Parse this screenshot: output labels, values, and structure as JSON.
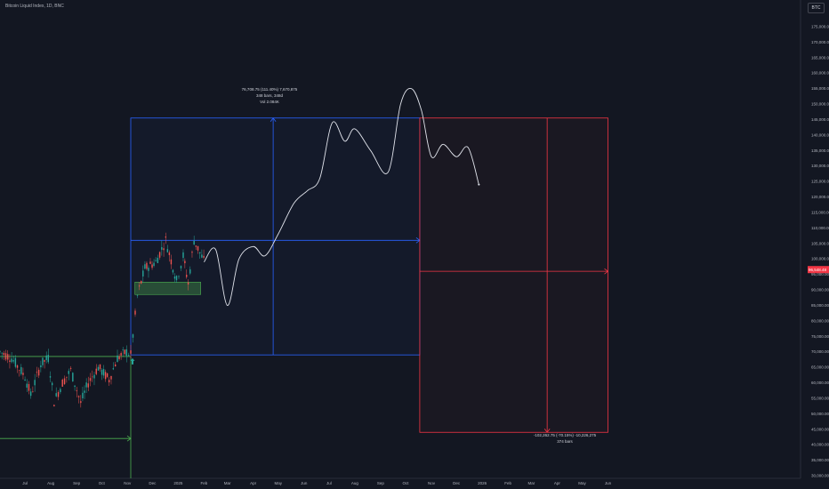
{
  "header": {
    "title": "Bitcoin Liquid Index, 1D, BNC",
    "currency": "BTC"
  },
  "colors": {
    "background": "#131722",
    "up": "#26a69a",
    "down": "#ef5350",
    "blue": "#2962ff",
    "red": "#f23645",
    "green": "#4caf50",
    "projection": "#e0e3eb",
    "price_badge": "#f23645"
  },
  "price_badge": "96,548.48",
  "annotations": {
    "long_measure": [
      "76,708.75 (111.40%) 7,670,875",
      "348 bars, 348d",
      "Vol 2.084K"
    ],
    "short_measure": [
      "-102,262.75 (-70.15%) -10,226,275",
      "374 bars"
    ]
  },
  "chart_data": {
    "type": "line",
    "title": "Bitcoin Liquid Index, 1D, BNC",
    "xlabel": "",
    "ylabel": "",
    "ylim": [
      25000,
      180000
    ],
    "y_ticks": [
      30000,
      35000,
      40000,
      45000,
      50000,
      55000,
      60000,
      65000,
      70000,
      75000,
      80000,
      85000,
      90000,
      95000,
      100000,
      105000,
      110000,
      115000,
      120000,
      125000,
      130000,
      135000,
      140000,
      145000,
      150000,
      155000,
      160000,
      165000,
      170000,
      175000
    ],
    "y_tick_labels": [
      "30,000.00",
      "35,000.00",
      "40,000.00",
      "45,000.00",
      "50,000.00",
      "55,000.00",
      "60,000.00",
      "65,000.00",
      "70,000.00",
      "75,000.00",
      "80,000.00",
      "85,000.00",
      "90,000.00",
      "95,000.00",
      "100,000.00",
      "105,000.00",
      "110,000.00",
      "115,000.00",
      "120,000.00",
      "125,000.00",
      "130,000.00",
      "135,000.00",
      "140,000.00",
      "145,000.00",
      "150,000.00",
      "155,000.00",
      "160,000.00",
      "165,000.00",
      "170,000.00",
      "175,000.00"
    ],
    "x_ticks": [
      "Jul",
      "Aug",
      "Sep",
      "Oct",
      "Nov",
      "Dec",
      "2025",
      "Feb",
      "Mar",
      "Apr",
      "May",
      "Jun",
      "Jul",
      "Aug",
      "Sep",
      "Oct",
      "Nov",
      "Dec",
      "2026",
      "Feb",
      "Mar",
      "Apr",
      "May",
      "Jun"
    ],
    "last_price": 96548.48,
    "price_series": {
      "name": "Bitcoin Liquid Index",
      "x": [
        "2024-06-01",
        "2024-06-15",
        "2024-07-01",
        "2024-07-08",
        "2024-07-20",
        "2024-07-29",
        "2024-08-05",
        "2024-08-15",
        "2024-08-25",
        "2024-09-06",
        "2024-09-15",
        "2024-09-27",
        "2024-10-10",
        "2024-10-20",
        "2024-10-31",
        "2024-11-05",
        "2024-11-13",
        "2024-11-22",
        "2024-12-05",
        "2024-12-17",
        "2024-12-30",
        "2025-01-07",
        "2025-01-13",
        "2025-01-20",
        "2025-01-27",
        "2025-02-03"
      ],
      "y": [
        70000,
        68000,
        62000,
        56000,
        66000,
        68000,
        54000,
        60000,
        64000,
        53500,
        60000,
        65000,
        61000,
        68000,
        70000,
        69000,
        88000,
        97000,
        99000,
        106000,
        93000,
        101000,
        92000,
        106000,
        102000,
        98000
      ]
    },
    "projection_series": {
      "name": "",
      "x": [
        "2025-02-01",
        "2025-02-15",
        "2025-03-01",
        "2025-03-15",
        "2025-04-01",
        "2025-04-15",
        "2025-05-01",
        "2025-05-20",
        "2025-06-05",
        "2025-06-20",
        "2025-07-05",
        "2025-07-20",
        "2025-08-01",
        "2025-08-20",
        "2025-09-10",
        "2025-09-25",
        "2025-10-08",
        "2025-10-20",
        "2025-11-01",
        "2025-11-15",
        "2025-12-01",
        "2025-12-15",
        "2025-12-28"
      ],
      "y": [
        99000,
        103000,
        85000,
        100000,
        104000,
        101000,
        108000,
        118000,
        122000,
        126000,
        144000,
        138000,
        142000,
        135000,
        128000,
        150000,
        155000,
        148000,
        133000,
        137000,
        133000,
        136000,
        124000
      ]
    },
    "long_position": {
      "x0": "2024-11-05",
      "x1": "2025-10-18",
      "stop": 69000,
      "entry": 106000,
      "target": 145500,
      "arrow_x": "2025-04-25"
    },
    "short_position": {
      "x0": "2025-10-18",
      "x1": "2026-06-01",
      "target": 44000,
      "entry": 96000,
      "stop": 145500,
      "arrow_x": "2026-03-20"
    },
    "support_zone": {
      "x0": "2024-11-10",
      "x1": "2025-01-28",
      "low": 88500,
      "high": 92500
    },
    "green_line": {
      "y": 68500,
      "x0": "2024-06-01",
      "x1": "2024-11-05",
      "vertical_x": "2024-11-05",
      "arrow_y": 42000
    }
  }
}
